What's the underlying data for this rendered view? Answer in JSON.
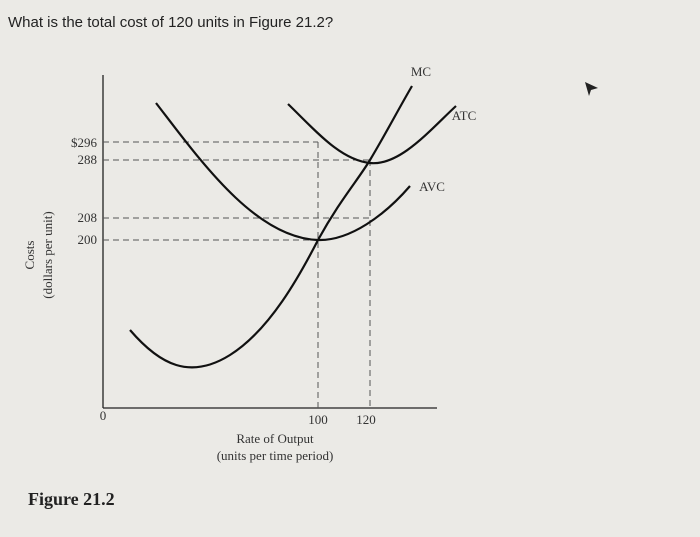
{
  "question": "What is the total cost of 120 units in Figure 21.2?",
  "figure": {
    "caption": "Figure 21.2",
    "y_axis_label": [
      "Costs",
      "(dollars per unit)"
    ],
    "x_axis_label": [
      "Rate of Output",
      "(units per time period)"
    ],
    "y_tick_labels": [
      "$296",
      "288",
      "208",
      "200"
    ],
    "x_tick_labels": [
      "0",
      "100",
      "120"
    ],
    "curve_labels": [
      "MC",
      "ATC",
      "AVC"
    ]
  }
}
